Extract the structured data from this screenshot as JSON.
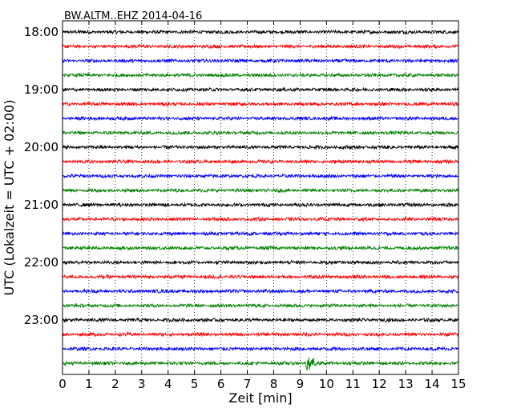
{
  "chart_data": {
    "type": "line",
    "title": "BW.ALTM..EHZ 2014-04-16",
    "xlabel": "Zeit  [min]",
    "ylabel": "UTC (Lokalzeit = UTC + 02:00)",
    "xlim": [
      0,
      15
    ],
    "x_ticks": [
      "0",
      "1",
      "2",
      "3",
      "4",
      "5",
      "6",
      "7",
      "8",
      "9",
      "10",
      "11",
      "12",
      "13",
      "14",
      "15"
    ],
    "y_tick_labels": [
      "18:00",
      "19:00",
      "20:00",
      "21:00",
      "22:00",
      "23:00"
    ],
    "grid": "vertical dotted",
    "trace_colors": [
      "#000000",
      "#ff0000",
      "#0000ff",
      "#008000"
    ],
    "traces_per_hour": 4,
    "minutes_per_trace": 15,
    "num_traces": 24,
    "start_time": "18:00",
    "noise_amplitude": 0.12,
    "event": {
      "trace_index": 23,
      "time_min": 9.22,
      "peak_amplitude": 1.25,
      "coda_duration_min": 1.0
    }
  }
}
